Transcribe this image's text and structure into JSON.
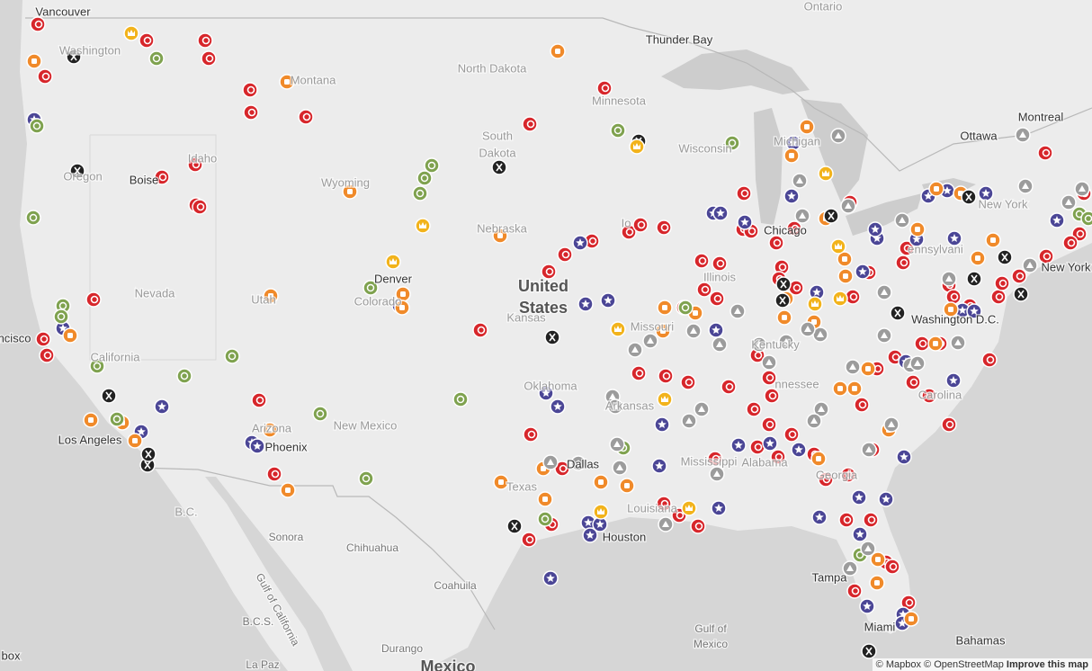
{
  "map": {
    "labels": [
      "Vancouver",
      "Washington",
      "Ontario",
      "Thunder Bay",
      "North Dakota",
      "Montana",
      "Minnesota",
      "Montreal",
      "Ottawa",
      "Wisconsin",
      "Michigan",
      "South",
      "Dakota",
      "Oregon",
      "Boise",
      "Idaho",
      "Wyoming",
      "Nebraska",
      "Io",
      "Chicago",
      "New York",
      "ennsylvani",
      "New York",
      "Nevada",
      "United",
      "States",
      "Kansas",
      "Utah",
      "Denver",
      "Colorado",
      "Missouri",
      "Illinois",
      "Washington D.C.",
      "Kentucky",
      "California",
      "ncisco",
      "Oklahoma",
      "Arkansas",
      "New Mexico",
      "Arizona",
      "Phoenix",
      "Los Angeles",
      "nnessee",
      "Carolina",
      "Georgia",
      "Alabama",
      "Mississippi",
      "Texas",
      "Dallas",
      "Louisiana",
      "Houston",
      "B.C.",
      "Sonora",
      "Chihuahua",
      "Coahuila",
      "Gulf of California",
      "Gulf of",
      "Mexico",
      "B.C.S.",
      "Durango",
      "La Paz",
      "Mexico",
      "Tampa",
      "Miami",
      "Bahamas",
      "box"
    ]
  },
  "attribution": {
    "mapbox": "© Mapbox",
    "osm": "© OpenStreetMap",
    "improve": "Improve this map"
  }
}
